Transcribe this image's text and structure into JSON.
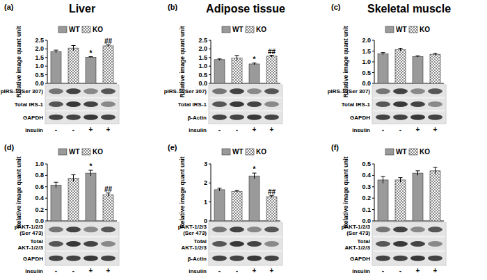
{
  "chart_data": [
    {
      "type": "bar",
      "panel": "(a)",
      "title": "Liver",
      "y_label": "Relative image quant unit",
      "legend": "top",
      "categories": [
        "-",
        "-",
        "+",
        "+"
      ],
      "x_label": "Insulin",
      "series": [
        {
          "name": "WT",
          "color": "#9a9a9a",
          "values": [
            1.85,
            null,
            1.52,
            null
          ],
          "errors": [
            0.08,
            null,
            0.03,
            null
          ],
          "sig": [
            null,
            null,
            "*",
            null
          ]
        },
        {
          "name": "KO",
          "color": "#8a8a8a",
          "marker": "checker",
          "values": [
            null,
            2.05,
            null,
            2.18
          ],
          "errors": [
            null,
            0.15,
            null,
            0.05
          ],
          "sig": [
            null,
            null,
            null,
            "##"
          ]
        }
      ],
      "ylim": [
        0,
        2.5
      ],
      "yticks": [
        {
          "value": 0,
          "label": "0.0"
        },
        {
          "value": 0.5,
          "label": "0.5"
        },
        {
          "value": 1,
          "label": "1.0"
        },
        {
          "value": 1.5,
          "label": "1.5"
        },
        {
          "value": 2,
          "label": "2.0"
        },
        {
          "value": 2.5,
          "label": "2.5"
        }
      ],
      "blot_rows": [
        [
          "pIRS-1 (Ser 307)"
        ],
        [
          "Total IRS-1"
        ],
        [
          "GAPDH"
        ]
      ]
    },
    {
      "type": "bar",
      "panel": "(b)",
      "title": "Adipose tissue",
      "y_label": "Relative image quant unit",
      "legend": "top",
      "categories": [
        "-",
        "-",
        "+",
        "+"
      ],
      "x_label": "Insulin",
      "series": [
        {
          "name": "WT",
          "color": "#9a9a9a",
          "values": [
            1.38,
            null,
            1.13,
            null
          ],
          "errors": [
            0.04,
            null,
            0.05,
            null
          ],
          "sig": [
            null,
            null,
            "*",
            null
          ]
        },
        {
          "name": "KO",
          "color": "#8a8a8a",
          "marker": "checker",
          "values": [
            null,
            1.47,
            null,
            1.58
          ],
          "errors": [
            null,
            0.15,
            null,
            0.05
          ],
          "sig": [
            null,
            null,
            null,
            "##"
          ]
        }
      ],
      "ylim": [
        0,
        2.5
      ],
      "yticks": [
        {
          "value": 0,
          "label": "0.0"
        },
        {
          "value": 0.5,
          "label": "0.5"
        },
        {
          "value": 1,
          "label": "1.0"
        },
        {
          "value": 1.5,
          "label": "1.5"
        },
        {
          "value": 2,
          "label": "2.0"
        },
        {
          "value": 2.5,
          "label": "2.5"
        }
      ],
      "blot_rows": [
        [
          "pIRS-1 (Ser 307)"
        ],
        [
          "Total IRS-1"
        ],
        [
          "β-Actin"
        ]
      ]
    },
    {
      "type": "bar",
      "panel": "(c)",
      "title": "Skeletal muscle",
      "y_label": "Relative image quant unit",
      "legend": "top",
      "categories": [
        "-",
        "-",
        "+",
        "+"
      ],
      "x_label": "Insulin",
      "series": [
        {
          "name": "WT",
          "color": "#9a9a9a",
          "values": [
            1.38,
            null,
            1.25,
            null
          ],
          "errors": [
            0.05,
            null,
            0.03,
            null
          ]
        },
        {
          "name": "KO",
          "color": "#8a8a8a",
          "marker": "checker",
          "values": [
            null,
            1.57,
            null,
            1.35
          ],
          "errors": [
            null,
            0.06,
            null,
            0.05
          ]
        }
      ],
      "ylim": [
        0,
        2
      ],
      "yticks": [
        {
          "value": 0,
          "label": "0.0"
        },
        {
          "value": 0.5,
          "label": "0.5"
        },
        {
          "value": 1,
          "label": "1.0"
        },
        {
          "value": 1.5,
          "label": "1.5"
        },
        {
          "value": 2,
          "label": "2.0"
        }
      ],
      "blot_rows": [
        [
          "pIRS-1 (Ser 307)"
        ],
        [
          "Total IRS-1"
        ],
        [
          "GAPDH"
        ]
      ]
    },
    {
      "type": "bar",
      "panel": "(d)",
      "y_label": "Relative image quant unit",
      "legend": "top",
      "categories": [
        "-",
        "-",
        "+",
        "+"
      ],
      "x_label": "Insulin",
      "series": [
        {
          "name": "WT",
          "color": "#9a9a9a",
          "values": [
            0.63,
            null,
            0.84,
            null
          ],
          "errors": [
            0.05,
            null,
            0.05,
            null
          ],
          "sig": [
            null,
            null,
            "*",
            null
          ]
        },
        {
          "name": "KO",
          "color": "#8a8a8a",
          "marker": "checker",
          "values": [
            null,
            0.75,
            null,
            0.46
          ],
          "errors": [
            null,
            0.06,
            null,
            0.03
          ],
          "sig": [
            null,
            null,
            null,
            "##"
          ]
        }
      ],
      "ylim": [
        0,
        1
      ],
      "yticks": [
        {
          "value": 0,
          "label": "0.0"
        },
        {
          "value": 0.2,
          "label": "0.2"
        },
        {
          "value": 0.4,
          "label": "0.4"
        },
        {
          "value": 0.6,
          "label": "0.6"
        },
        {
          "value": 0.8,
          "label": "0.8"
        },
        {
          "value": 1,
          "label": "1.0"
        }
      ],
      "blot_rows": [
        [
          "pAKT-1/2/3",
          "(Ser 473)"
        ],
        [
          "Total",
          "AKT-1/2/3"
        ],
        [
          "GAPDH"
        ]
      ]
    },
    {
      "type": "bar",
      "panel": "(e)",
      "y_label": "Relative image quant unit",
      "legend": "top",
      "categories": [
        "-",
        "-",
        "+",
        "+"
      ],
      "x_label": "Insulin",
      "series": [
        {
          "name": "WT",
          "color": "#9a9a9a",
          "values": [
            1.65,
            null,
            2.37,
            null
          ],
          "errors": [
            0.07,
            null,
            0.15,
            null
          ],
          "sig": [
            null,
            null,
            "*",
            null
          ]
        },
        {
          "name": "KO",
          "color": "#8a8a8a",
          "marker": "checker",
          "values": [
            null,
            1.55,
            null,
            1.28
          ],
          "errors": [
            null,
            0.05,
            null,
            0.05
          ],
          "sig": [
            null,
            null,
            null,
            "##"
          ]
        }
      ],
      "ylim": [
        0,
        3
      ],
      "yticks": [
        0,
        1,
        2,
        3
      ],
      "blot_rows": [
        [
          "pAKT-1/2/3",
          "(Ser 473)"
        ],
        [
          "Total",
          "AKT-1/2/3"
        ],
        [
          "β-Actin"
        ]
      ]
    },
    {
      "type": "bar",
      "panel": "(f)",
      "y_label": "Relative image quant unit",
      "legend": "top",
      "categories": [
        "-",
        "-",
        "+",
        "+"
      ],
      "x_label": "Insulin",
      "series": [
        {
          "name": "WT",
          "color": "#9a9a9a",
          "values": [
            0.36,
            null,
            0.42,
            null
          ],
          "errors": [
            0.03,
            null,
            0.02,
            null
          ]
        },
        {
          "name": "KO",
          "color": "#8a8a8a",
          "marker": "checker",
          "values": [
            null,
            0.36,
            null,
            0.44
          ],
          "errors": [
            null,
            0.02,
            null,
            0.03
          ]
        }
      ],
      "ylim": [
        0,
        0.5
      ],
      "yticks": [
        {
          "value": 0,
          "label": "0.0"
        },
        {
          "value": 0.1,
          "label": "0.1"
        },
        {
          "value": 0.2,
          "label": "0.2"
        },
        {
          "value": 0.3,
          "label": "0.3"
        },
        {
          "value": 0.4,
          "label": "0.4"
        },
        {
          "value": 0.5,
          "label": "0.5"
        }
      ],
      "blot_rows": [
        [
          "pAKT-1/2/3",
          "(Ser 473)"
        ],
        [
          "Total",
          "AKT-1/2/3"
        ],
        [
          "GAPDH"
        ]
      ]
    }
  ]
}
